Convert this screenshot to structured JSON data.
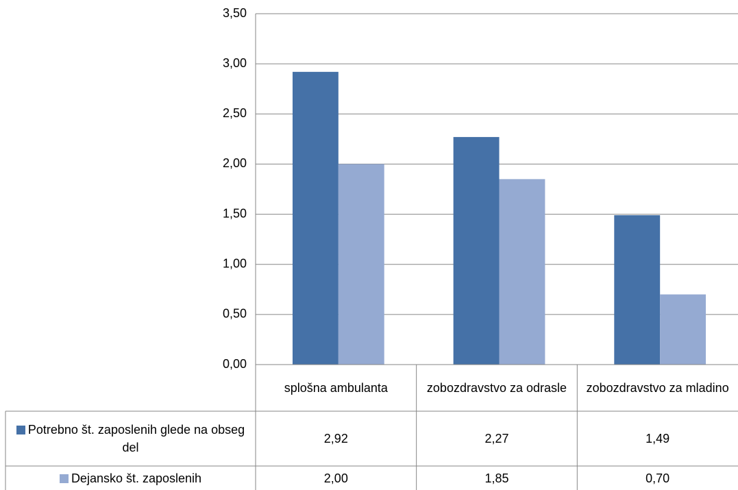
{
  "chart_data": {
    "type": "bar",
    "categories": [
      "splošna ambulanta",
      "zobozdravstvo za odrasle",
      "zobozdravstvo za mladino"
    ],
    "series": [
      {
        "name": "Potrebno št. zaposlenih glede na obseg del",
        "color": "#4571a7",
        "values": [
          2.92,
          2.27,
          1.49
        ],
        "value_labels": [
          "2,92",
          "2,27",
          "1,49"
        ]
      },
      {
        "name": "Dejansko št.  zaposlenih",
        "color": "#95aad2",
        "values": [
          2.0,
          1.85,
          0.7
        ],
        "value_labels": [
          "2,00",
          "1,85",
          "0,70"
        ]
      }
    ],
    "ylim": [
      0,
      3.5
    ],
    "yticks": [
      {
        "value": 0,
        "label": "0,00"
      },
      {
        "value": 0.5,
        "label": "0,50"
      },
      {
        "value": 1,
        "label": "1,00"
      },
      {
        "value": 1.5,
        "label": "1,50"
      },
      {
        "value": 2,
        "label": "2,00"
      },
      {
        "value": 2.5,
        "label": "2,50"
      },
      {
        "value": 3,
        "label": "3,00"
      },
      {
        "value": 3.5,
        "label": "3,50"
      }
    ],
    "grid": true,
    "data_table": true
  }
}
